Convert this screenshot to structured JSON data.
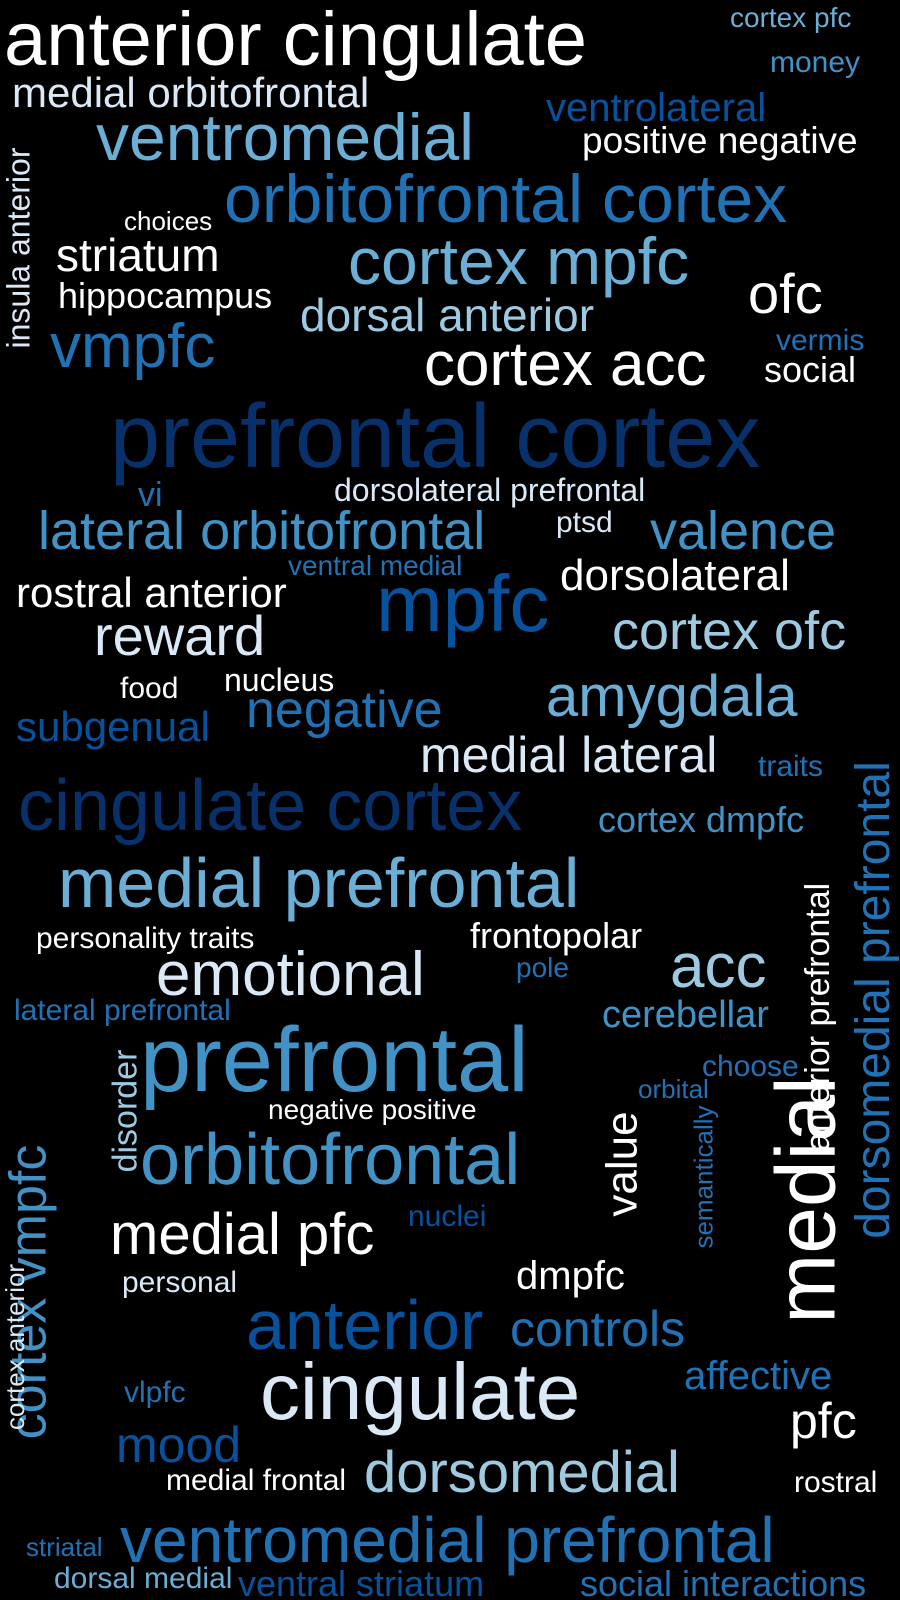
{
  "palette": {
    "white": "#ffffff",
    "pale": "#dbe9f6",
    "light": "#9ecae1",
    "mid": "#6baed6",
    "medium": "#4292c6",
    "strong": "#2171b5",
    "deep": "#08519c",
    "darkest": "#08306b"
  },
  "words": [
    {
      "text": "anterior cingulate",
      "color": "white"
    },
    {
      "text": "cortex pfc",
      "color": "mid"
    },
    {
      "text": "money",
      "color": "medium"
    },
    {
      "text": "medial orbitofrontal",
      "color": "pale"
    },
    {
      "text": "ventrolateral",
      "color": "deep"
    },
    {
      "text": "ventromedial",
      "color": "mid"
    },
    {
      "text": "positive negative",
      "color": "white"
    },
    {
      "text": "orbitofrontal cortex",
      "color": "strong"
    },
    {
      "text": "choices",
      "color": "white"
    },
    {
      "text": "striatum",
      "color": "white"
    },
    {
      "text": "cortex mpfc",
      "color": "mid"
    },
    {
      "text": "ofc",
      "color": "white"
    },
    {
      "text": "hippocampus",
      "color": "white"
    },
    {
      "text": "dorsal anterior",
      "color": "light"
    },
    {
      "text": "vermis",
      "color": "strong"
    },
    {
      "text": "vmpfc",
      "color": "strong"
    },
    {
      "text": "cortex acc",
      "color": "white"
    },
    {
      "text": "social",
      "color": "white"
    },
    {
      "text": "prefrontal cortex",
      "color": "darkest"
    },
    {
      "text": "vi",
      "color": "strong"
    },
    {
      "text": "dorsolateral prefrontal",
      "color": "pale"
    },
    {
      "text": "lateral orbitofrontal",
      "color": "medium"
    },
    {
      "text": "ptsd",
      "color": "pale"
    },
    {
      "text": "valence",
      "color": "medium"
    },
    {
      "text": "ventral medial",
      "color": "strong"
    },
    {
      "text": "dorsolateral",
      "color": "white"
    },
    {
      "text": "rostral anterior",
      "color": "white"
    },
    {
      "text": "mpfc",
      "color": "deep"
    },
    {
      "text": "reward",
      "color": "pale"
    },
    {
      "text": "cortex ofc",
      "color": "light"
    },
    {
      "text": "food",
      "color": "white"
    },
    {
      "text": "nucleus",
      "color": "white"
    },
    {
      "text": "negative",
      "color": "strong"
    },
    {
      "text": "amygdala",
      "color": "mid"
    },
    {
      "text": "subgenual",
      "color": "deep"
    },
    {
      "text": "medial lateral",
      "color": "pale"
    },
    {
      "text": "traits",
      "color": "strong"
    },
    {
      "text": "cingulate cortex",
      "color": "darkest"
    },
    {
      "text": "cortex dmpfc",
      "color": "medium"
    },
    {
      "text": "medial prefrontal",
      "color": "mid"
    },
    {
      "text": "personality traits",
      "color": "white"
    },
    {
      "text": "frontopolar",
      "color": "white"
    },
    {
      "text": "emotional",
      "color": "pale"
    },
    {
      "text": "acc",
      "color": "light"
    },
    {
      "text": "pole",
      "color": "strong"
    },
    {
      "text": "lateral prefrontal",
      "color": "strong"
    },
    {
      "text": "cerebellar",
      "color": "medium"
    },
    {
      "text": "prefrontal",
      "color": "medium"
    },
    {
      "text": "choose",
      "color": "strong"
    },
    {
      "text": "orbital",
      "color": "strong"
    },
    {
      "text": "negative positive",
      "color": "white"
    },
    {
      "text": "orbitofrontal",
      "color": "medium"
    },
    {
      "text": "medial pfc",
      "color": "white"
    },
    {
      "text": "nuclei",
      "color": "deep"
    },
    {
      "text": "personal",
      "color": "pale"
    },
    {
      "text": "dmpfc",
      "color": "white"
    },
    {
      "text": "anterior",
      "color": "deep"
    },
    {
      "text": "controls",
      "color": "strong"
    },
    {
      "text": "affective",
      "color": "strong"
    },
    {
      "text": "cingulate",
      "color": "pale"
    },
    {
      "text": "vlpfc",
      "color": "strong"
    },
    {
      "text": "pfc",
      "color": "white"
    },
    {
      "text": "mood",
      "color": "deep"
    },
    {
      "text": "medial frontal",
      "color": "white"
    },
    {
      "text": "dorsomedial",
      "color": "light"
    },
    {
      "text": "rostral",
      "color": "white"
    },
    {
      "text": "striatal",
      "color": "strong"
    },
    {
      "text": "ventromedial prefrontal",
      "color": "strong"
    },
    {
      "text": "dorsal medial",
      "color": "mid"
    },
    {
      "text": "ventral striatum",
      "color": "deep"
    },
    {
      "text": "social interactions",
      "color": "strong"
    },
    {
      "text": "insula anterior",
      "color": "pale"
    },
    {
      "text": "cortex vmpfc",
      "color": "medium"
    },
    {
      "text": "cortex anterior",
      "color": "pale"
    },
    {
      "text": "disorder",
      "color": "light"
    },
    {
      "text": "value",
      "color": "white"
    },
    {
      "text": "semantically",
      "color": "strong"
    },
    {
      "text": "medial",
      "color": "white"
    },
    {
      "text": "anterior prefrontal",
      "color": "white"
    },
    {
      "text": "dorsomedial prefrontal",
      "color": "strong"
    }
  ]
}
